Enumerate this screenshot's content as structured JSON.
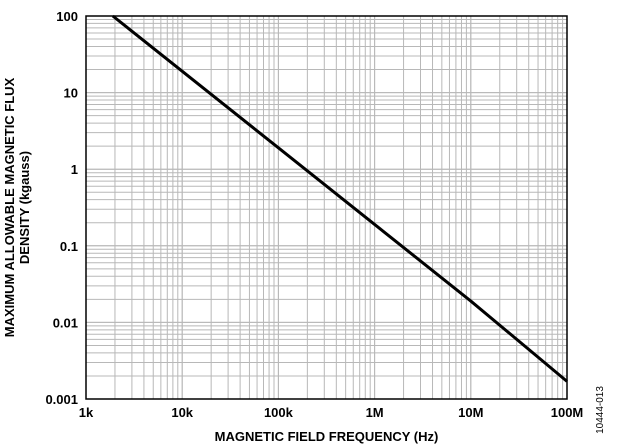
{
  "chart_data": {
    "type": "line",
    "title": "",
    "xlabel": "MAGNETIC FIELD FREQUENCY (Hz)",
    "ylabel_lines": [
      "MAXIMUM ALLOWABLE MAGNETIC FLUX",
      "DENSITY (kgauss)"
    ],
    "x_scale": "log",
    "y_scale": "log",
    "xlim": [
      1000,
      100000000
    ],
    "ylim": [
      0.001,
      100
    ],
    "x_ticks": [
      {
        "value": 1000,
        "label": "1k"
      },
      {
        "value": 10000,
        "label": "10k"
      },
      {
        "value": 100000,
        "label": "100k"
      },
      {
        "value": 1000000,
        "label": "1M"
      },
      {
        "value": 10000000,
        "label": "10M"
      },
      {
        "value": 100000000,
        "label": "100M"
      }
    ],
    "y_ticks": [
      {
        "value": 0.001,
        "label": "0.001"
      },
      {
        "value": 0.01,
        "label": "0.01"
      },
      {
        "value": 0.1,
        "label": "0.1"
      },
      {
        "value": 1,
        "label": "1"
      },
      {
        "value": 10,
        "label": "10"
      },
      {
        "value": 100,
        "label": "100"
      }
    ],
    "grid": true,
    "series": [
      {
        "x": [
          1900,
          100000,
          1000000,
          10000000,
          100000000
        ],
        "y": [
          100,
          1.9,
          0.19,
          0.019,
          0.0017
        ]
      }
    ],
    "figure_id": "10444-013"
  },
  "colors": {
    "line": "#000000",
    "grid": "#b8b8b8",
    "frame": "#000000"
  }
}
